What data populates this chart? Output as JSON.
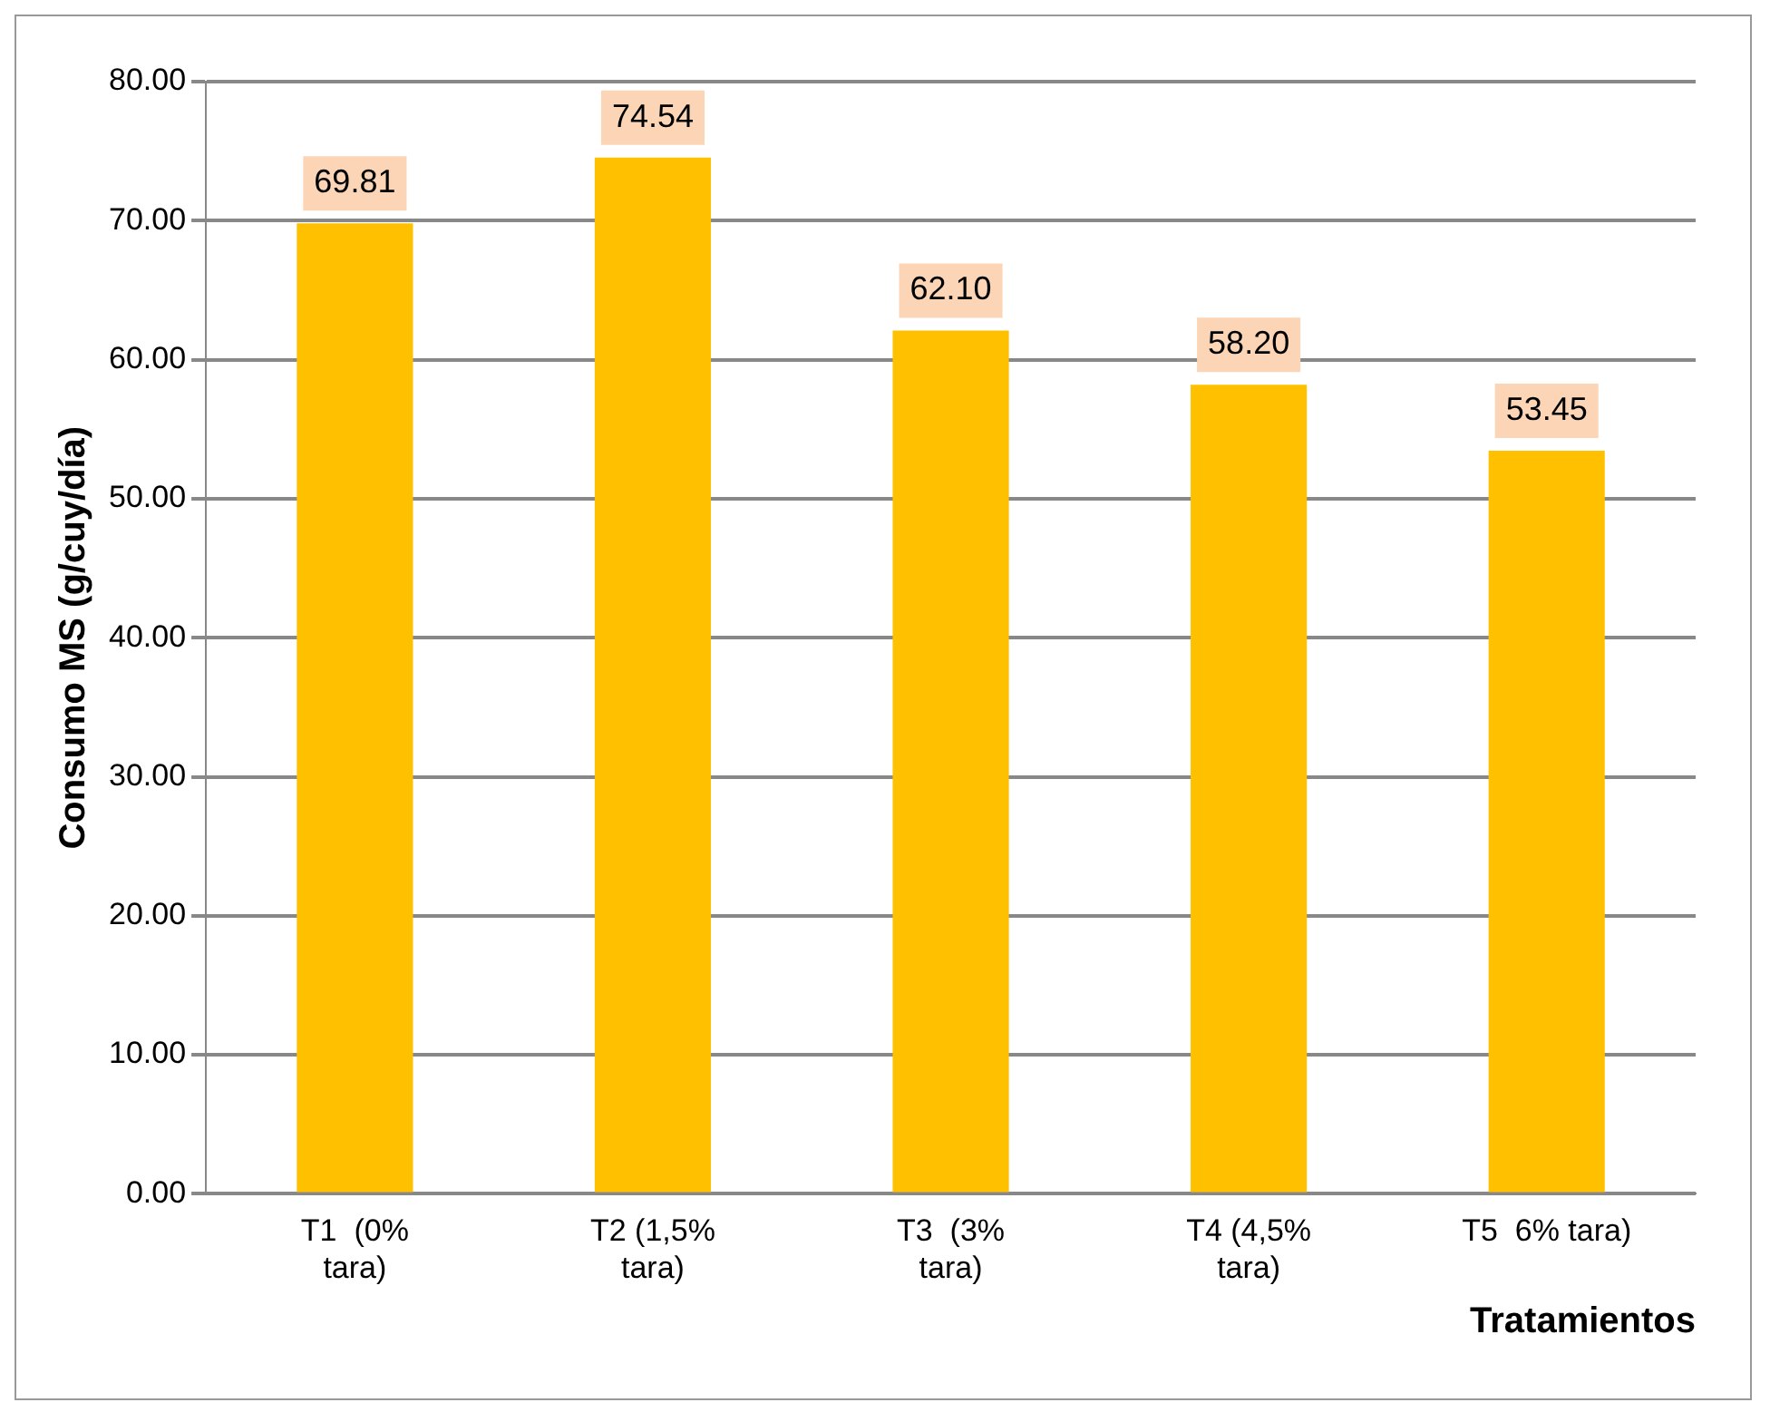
{
  "chart_data": {
    "type": "bar",
    "categories": [
      "T1  (0% tara)",
      "T2 (1,5% tara)",
      "T3  (3% tara)",
      "T4 (4,5% tara)",
      "T5  6% tara)"
    ],
    "values": [
      69.81,
      74.54,
      62.1,
      58.2,
      53.45
    ],
    "color": "#ffc000",
    "xlabel": "Tratamientos",
    "ylabel": "Consumo MS (g/cuy/día)",
    "ylim": [
      0,
      80
    ],
    "yticks": [
      {
        "value": 0,
        "label": "0.00"
      },
      {
        "value": 10,
        "label": "10.00"
      },
      {
        "value": 20,
        "label": "20.00"
      },
      {
        "value": 30,
        "label": "30.00"
      },
      {
        "value": 40,
        "label": "40.00"
      },
      {
        "value": 50,
        "label": "50.00"
      },
      {
        "value": 60,
        "label": "60.00"
      },
      {
        "value": 70,
        "label": "70.00"
      },
      {
        "value": 80,
        "label": "80.00"
      }
    ],
    "value_labels": [
      "69.81",
      "74.54",
      "62.10",
      "58.20",
      "53.45"
    ],
    "grid": "y",
    "legend": false
  }
}
